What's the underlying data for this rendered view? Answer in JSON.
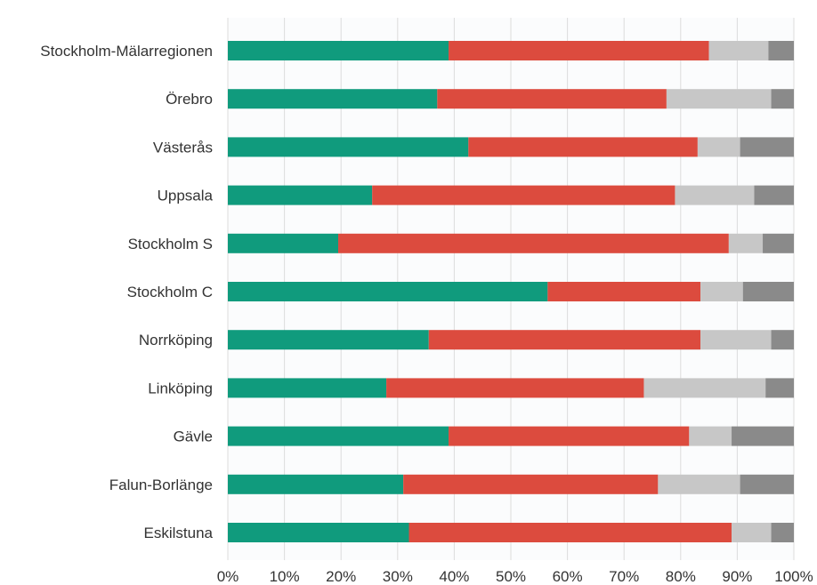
{
  "chart_data": {
    "type": "bar",
    "orientation": "horizontal",
    "stacked": true,
    "categories": [
      "Stockholm-Mälarregionen",
      "Örebro",
      "Västerås",
      "Uppsala",
      "Stockholm S",
      "Stockholm C",
      "Norrköping",
      "Linköping",
      "Gävle",
      "Falun-Borlänge",
      "Eskilstuna"
    ],
    "series": [
      {
        "color": "#109b7d",
        "values": [
          39,
          37,
          42.5,
          25.5,
          19.5,
          56.5,
          35.5,
          28,
          39,
          31,
          32
        ]
      },
      {
        "color": "#dc4b3e",
        "values": [
          46,
          40.5,
          40.5,
          53.5,
          69,
          27,
          48,
          45.5,
          42.5,
          45,
          57
        ]
      },
      {
        "color": "#c7c7c7",
        "values": [
          10.5,
          18.5,
          7.5,
          14,
          6,
          7.5,
          12.5,
          21.5,
          7.5,
          14.5,
          7
        ]
      },
      {
        "color": "#8a8a8a",
        "values": [
          4.5,
          4,
          9.5,
          7,
          5.5,
          9,
          4,
          5,
          11,
          9.5,
          4
        ]
      }
    ],
    "xlim": [
      0,
      100
    ],
    "xticks": [
      "0%",
      "10%",
      "20%",
      "30%",
      "40%",
      "50%",
      "60%",
      "70%",
      "80%",
      "90%",
      "100%"
    ],
    "grid": true,
    "title": "",
    "xlabel": "",
    "ylabel": ""
  }
}
